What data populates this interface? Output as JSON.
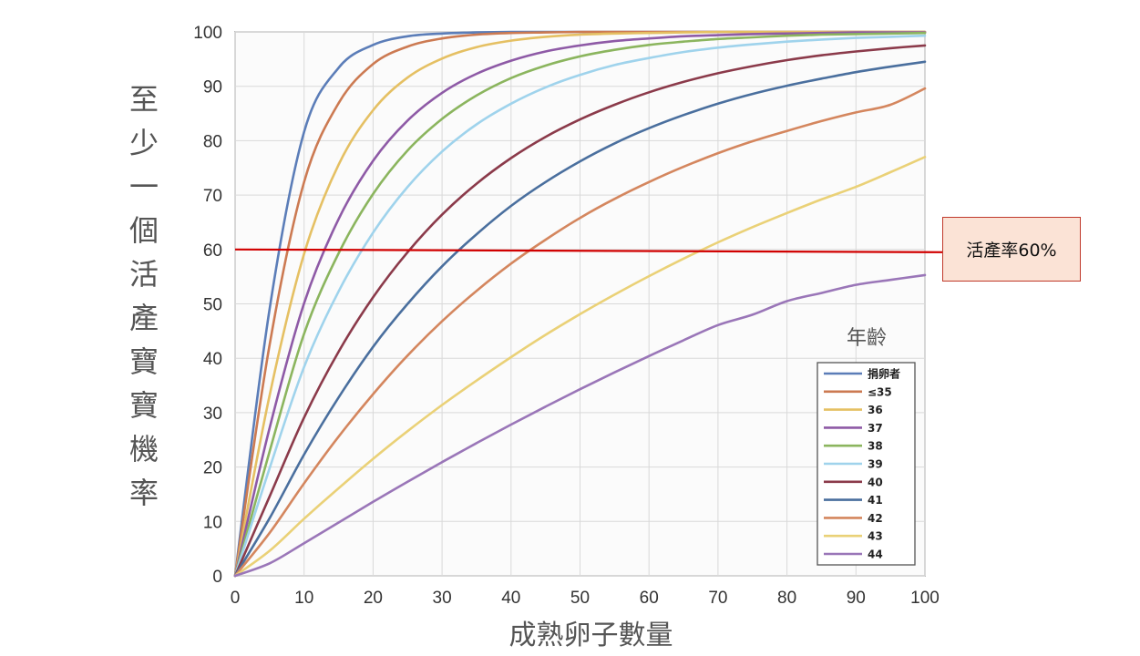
{
  "chart_data": {
    "type": "line",
    "ylabel": "至少一個活產寶寶機率",
    "xlabel": "成熟卵子數量",
    "xlim": [
      0,
      100
    ],
    "ylim": [
      0,
      100
    ],
    "x_ticks": [
      0,
      10,
      20,
      30,
      40,
      50,
      60,
      70,
      80,
      90,
      100
    ],
    "y_ticks": [
      0,
      10,
      20,
      30,
      40,
      50,
      60,
      70,
      80,
      90,
      100
    ],
    "grid": true,
    "legend_title": "年齡",
    "legend_position": "bottom-right",
    "x": [
      0,
      5,
      10,
      15,
      20,
      25,
      30,
      35,
      40,
      45,
      50,
      55,
      60,
      65,
      70,
      75,
      80,
      85,
      90,
      95,
      100
    ],
    "series": [
      {
        "name": "捐卵者",
        "color": "#5b7db8",
        "values": [
          0,
          49.1,
          81.6,
          93.4,
          97.6,
          99.2,
          99.7,
          99.9,
          100,
          100,
          100,
          100,
          100,
          100,
          100,
          100,
          100,
          100,
          100,
          100,
          100
        ]
      },
      {
        "name": "≤35",
        "color": "#cc7a52",
        "values": [
          0,
          42.5,
          72.4,
          86.9,
          94.1,
          97.3,
          98.8,
          99.5,
          99.8,
          99.9,
          100,
          100,
          100,
          100,
          100,
          100,
          100,
          100,
          100,
          100,
          100
        ]
      },
      {
        "name": "36",
        "color": "#e5c063",
        "values": [
          0,
          33.2,
          59.2,
          75.6,
          85.6,
          91.6,
          95.1,
          97.2,
          98.4,
          99.1,
          99.5,
          99.7,
          99.8,
          99.9,
          100,
          100,
          100,
          100,
          100,
          100,
          100
        ]
      },
      {
        "name": "37",
        "color": "#8e5aa6",
        "values": [
          0,
          27.2,
          50.1,
          65.6,
          76.3,
          83.7,
          88.8,
          92.3,
          94.7,
          96.4,
          97.5,
          98.3,
          98.8,
          99.2,
          99.4,
          99.6,
          99.7,
          99.8,
          99.9,
          99.9,
          99.9
        ]
      },
      {
        "name": "38",
        "color": "#8bb55e",
        "values": [
          0,
          22.9,
          44.5,
          59.3,
          70.2,
          78.2,
          84.0,
          88.3,
          91.5,
          93.8,
          95.5,
          96.7,
          97.6,
          98.2,
          98.7,
          99.0,
          99.3,
          99.5,
          99.6,
          99.7,
          99.8
        ]
      },
      {
        "name": "39",
        "color": "#9fd3ec",
        "values": [
          0,
          19.8,
          38.4,
          52.3,
          63.1,
          71.5,
          78.0,
          83.0,
          86.8,
          89.8,
          92.1,
          93.9,
          95.2,
          96.3,
          97.1,
          97.7,
          98.2,
          98.6,
          98.9,
          99.1,
          99.3
        ]
      },
      {
        "name": "40",
        "color": "#8b3a4a",
        "values": [
          0,
          14.6,
          29.1,
          41.2,
          51.2,
          59.5,
          66.4,
          72.1,
          76.8,
          80.7,
          83.9,
          86.6,
          88.9,
          90.8,
          92.4,
          93.7,
          94.8,
          95.7,
          96.4,
          97.0,
          97.5
        ]
      },
      {
        "name": "41",
        "color": "#4a6f9e",
        "values": [
          0,
          10.6,
          22.3,
          32.8,
          42.1,
          50.0,
          56.9,
          62.8,
          68.0,
          72.4,
          76.2,
          79.5,
          82.3,
          84.7,
          86.8,
          88.6,
          90.1,
          91.4,
          92.6,
          93.6,
          94.5
        ]
      },
      {
        "name": "42",
        "color": "#d4865e",
        "values": [
          0,
          7.9,
          17.0,
          25.6,
          33.4,
          40.5,
          46.8,
          52.4,
          57.4,
          61.8,
          65.8,
          69.3,
          72.4,
          75.2,
          77.7,
          79.9,
          81.8,
          83.6,
          85.2,
          86.6,
          89.6
        ]
      },
      {
        "name": "43",
        "color": "#ead177",
        "values": [
          0,
          4.6,
          10.5,
          16.1,
          21.5,
          26.6,
          31.4,
          35.9,
          40.2,
          44.3,
          48.1,
          51.7,
          55.1,
          58.3,
          61.3,
          64.1,
          66.7,
          69.2,
          71.5,
          74.2,
          77.0
        ]
      },
      {
        "name": "44",
        "color": "#9a76b8",
        "values": [
          0,
          2.3,
          6.0,
          9.8,
          13.6,
          17.3,
          20.9,
          24.4,
          27.8,
          31.1,
          34.3,
          37.4,
          40.4,
          43.3,
          46.1,
          48.0,
          50.5,
          52.0,
          53.5,
          54.4,
          55.3
        ]
      }
    ],
    "reference_line": {
      "y": 60,
      "color": "#d10000"
    },
    "annotation": {
      "text": "活產率60%",
      "fill": "#fbe3d6",
      "border": "#c0392b"
    }
  }
}
